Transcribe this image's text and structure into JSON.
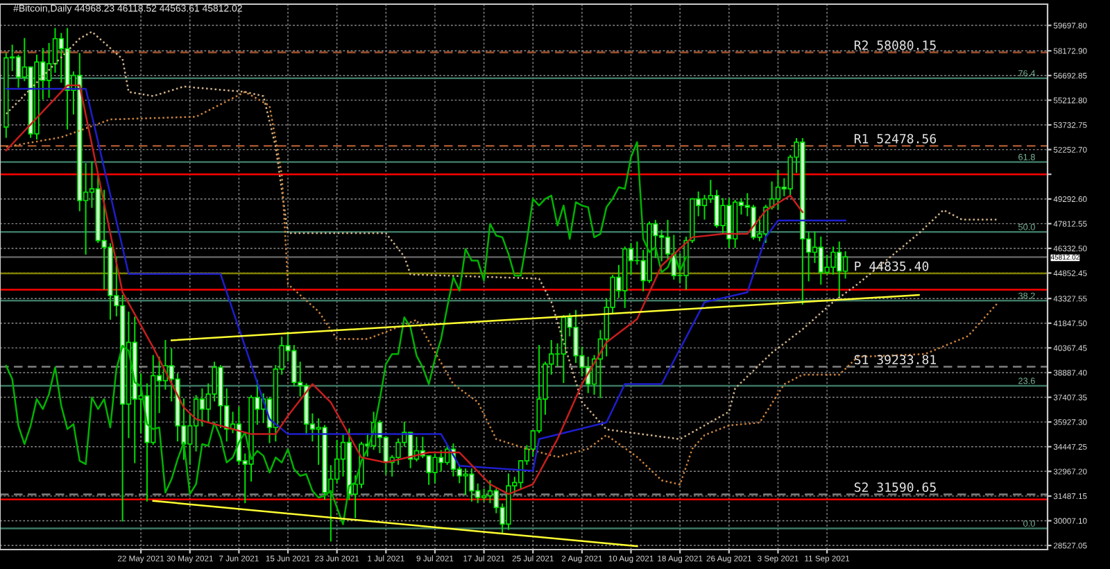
{
  "chart_data": {
    "type": "candlestick",
    "title": "#Bitcoin,Daily 44968.23 46118.52 44563.61 45812.02",
    "xlim": [
      "2021-04-29",
      "2021-10-17"
    ],
    "ylim": [
      28280,
      60969
    ],
    "xticks": [
      {
        "value": "2021-05-22",
        "label": "22 May 2021"
      },
      {
        "value": "2021-05-30",
        "label": "30 May 2021"
      },
      {
        "value": "2021-06-07",
        "label": "7 Jun 2021"
      },
      {
        "value": "2021-06-15",
        "label": "15 Jun 2021"
      },
      {
        "value": "2021-06-23",
        "label": "23 Jun 2021"
      },
      {
        "value": "2021-07-01",
        "label": "1 Jul 2021"
      },
      {
        "value": "2021-07-09",
        "label": "9 Jul 2021"
      },
      {
        "value": "2021-07-17",
        "label": "17 Jul 2021"
      },
      {
        "value": "2021-07-25",
        "label": "25 Jul 2021"
      },
      {
        "value": "2021-08-02",
        "label": "2 Aug 2021"
      },
      {
        "value": "2021-08-10",
        "label": "10 Aug 2021"
      },
      {
        "value": "2021-08-18",
        "label": "18 Aug 2021"
      },
      {
        "value": "2021-08-26",
        "label": "26 Aug 2021"
      },
      {
        "value": "2021-09-03",
        "label": "3 Sep 2021"
      },
      {
        "value": "2021-09-11",
        "label": "11 Sep 2021"
      }
    ],
    "yticks": [
      {
        "value": 28527.05,
        "label": "28527.05"
      },
      {
        "value": 30007.1,
        "label": "30007.10"
      },
      {
        "value": 31487.15,
        "label": "31487.15"
      },
      {
        "value": 32967.2,
        "label": "32967.20"
      },
      {
        "value": 34447.25,
        "label": "34447.25"
      },
      {
        "value": 35927.3,
        "label": "35927.30"
      },
      {
        "value": 37407.35,
        "label": "37407.35"
      },
      {
        "value": 38887.4,
        "label": "38887.40"
      },
      {
        "value": 40367.45,
        "label": "40367.45"
      },
      {
        "value": 41847.5,
        "label": "41847.50"
      },
      {
        "value": 43327.55,
        "label": "43327.55"
      },
      {
        "value": 44852.45,
        "label": "44852.45"
      },
      {
        "value": 46332.5,
        "label": "46332.50"
      },
      {
        "value": 47812.55,
        "label": "47812.55"
      },
      {
        "value": 49292.6,
        "label": "49292.60"
      },
      {
        "value": 50772.65,
        "label": null
      },
      {
        "value": 52252.7,
        "label": "52252.70"
      },
      {
        "value": 53732.75,
        "label": "53732.75"
      },
      {
        "value": 55212.8,
        "label": "55212.80"
      },
      {
        "value": 56692.85,
        "label": "56692.85"
      },
      {
        "value": 58172.9,
        "label": "58172.90"
      },
      {
        "value": 59697.8,
        "label": "59697.80"
      }
    ],
    "grid": true,
    "annotations": [
      {
        "text": "76.4",
        "x": "2021-10-15",
        "y": 56530
      },
      {
        "text": "61.8",
        "x": "2021-10-15",
        "y": 51510
      },
      {
        "text": "50.0",
        "x": "2021-10-15",
        "y": 47320
      },
      {
        "text": "38.2",
        "x": "2021-10-15",
        "y": 43200
      },
      {
        "text": "23.6",
        "x": "2021-10-15",
        "y": 38100
      },
      {
        "text": "0.0",
        "x": "2021-10-15",
        "y": 29550
      }
    ],
    "series": [
      {
        "type": "line",
        "line_style": "dotted",
        "color": "#d2b48c",
        "x": [
          "2021-04-30",
          "2021-05-12",
          "2021-05-14",
          "2021-05-19",
          "2021-05-20",
          "2021-05-24",
          "2021-05-29",
          "2021-06-08",
          "2021-06-11",
          "2021-06-13",
          "2021-06-15",
          "2021-07-01",
          "2021-07-04",
          "2021-07-05",
          "2021-07-26",
          "2021-07-28",
          "2021-08-02",
          "2021-08-06",
          "2021-08-18",
          "2021-08-26",
          "2021-08-27",
          "2021-09-02",
          "2021-09-07",
          "2021-09-12",
          "2021-09-16",
          "2021-09-26",
          "2021-09-30",
          "2021-10-03",
          "2021-10-09"
        ],
        "values": [
          54390,
          58910,
          59320,
          57680,
          55710,
          55460,
          56030,
          55710,
          55460,
          52420,
          47240,
          47240,
          45840,
          44770,
          44520,
          43120,
          37120,
          35480,
          34900,
          36540,
          37940,
          40080,
          41480,
          43120,
          44190,
          47240,
          48630,
          48060,
          48060
        ]
      },
      {
        "type": "line",
        "line_style": "dotted",
        "color": "#cd853f",
        "x": [
          "2021-04-30",
          "2021-05-09",
          "2021-05-17",
          "2021-05-31",
          "2021-06-08",
          "2021-06-12",
          "2021-06-14",
          "2021-06-15",
          "2021-06-20",
          "2021-06-23",
          "2021-06-28",
          "2021-07-06",
          "2021-07-12",
          "2021-07-16",
          "2021-07-19",
          "2021-07-24",
          "2021-07-29",
          "2021-08-03",
          "2021-08-06",
          "2021-08-11",
          "2021-08-15",
          "2021-08-18",
          "2021-08-20",
          "2021-08-22",
          "2021-08-26",
          "2021-08-31",
          "2021-09-04",
          "2021-09-07",
          "2021-09-13",
          "2021-09-16",
          "2021-09-27",
          "2021-10-04",
          "2021-10-09"
        ],
        "values": [
          52420,
          52990,
          54060,
          54220,
          55710,
          54880,
          50770,
          44190,
          42550,
          40900,
          40900,
          42050,
          38190,
          37120,
          34900,
          34320,
          33830,
          34320,
          35140,
          33830,
          32430,
          32180,
          34320,
          35140,
          35720,
          35890,
          38190,
          38760,
          38760,
          39830,
          40000,
          41070,
          43120
        ]
      },
      {
        "type": "line",
        "color": "#00b400",
        "x": [
          "2021-04-30",
          "2021-05-01",
          "2021-05-02",
          "2021-05-03",
          "2021-05-04",
          "2021-05-05",
          "2021-05-06",
          "2021-05-07",
          "2021-05-08",
          "2021-05-09",
          "2021-05-10",
          "2021-05-11",
          "2021-05-12",
          "2021-05-13",
          "2021-05-14",
          "2021-05-15",
          "2021-05-16",
          "2021-05-17",
          "2021-05-18",
          "2021-05-19",
          "2021-05-20",
          "2021-05-21",
          "2021-05-22",
          "2021-05-23",
          "2021-05-24",
          "2021-05-25",
          "2021-05-26",
          "2021-05-27",
          "2021-05-28",
          "2021-05-29",
          "2021-05-30",
          "2021-05-31",
          "2021-06-01",
          "2021-06-02",
          "2021-06-03",
          "2021-06-04",
          "2021-06-05",
          "2021-06-06",
          "2021-06-07",
          "2021-06-08",
          "2021-06-09",
          "2021-06-10",
          "2021-06-11",
          "2021-06-12",
          "2021-06-13",
          "2021-06-14",
          "2021-06-15",
          "2021-06-16",
          "2021-06-17",
          "2021-06-18",
          "2021-06-19",
          "2021-06-20",
          "2021-06-21",
          "2021-06-22",
          "2021-06-23",
          "2021-06-24",
          "2021-06-25",
          "2021-06-26",
          "2021-06-27",
          "2021-06-28",
          "2021-06-29",
          "2021-06-30",
          "2021-07-01",
          "2021-07-02",
          "2021-07-03",
          "2021-07-04",
          "2021-07-05",
          "2021-07-06",
          "2021-07-07",
          "2021-07-08",
          "2021-07-09",
          "2021-07-10",
          "2021-07-11",
          "2021-07-12",
          "2021-07-13",
          "2021-07-14",
          "2021-07-15",
          "2021-07-16",
          "2021-07-17",
          "2021-07-18",
          "2021-07-19",
          "2021-07-20",
          "2021-07-21",
          "2021-07-22",
          "2021-07-23",
          "2021-07-24",
          "2021-07-25",
          "2021-07-26",
          "2021-07-27",
          "2021-07-28",
          "2021-07-29",
          "2021-07-30",
          "2021-07-31",
          "2021-08-01",
          "2021-08-02",
          "2021-08-03",
          "2021-08-04",
          "2021-08-05",
          "2021-08-06",
          "2021-08-07",
          "2021-08-08",
          "2021-08-09",
          "2021-08-10",
          "2021-08-11",
          "2021-08-12",
          "2021-08-13",
          "2021-08-14",
          "2021-08-15",
          "2021-08-16",
          "2021-08-17",
          "2021-08-18",
          "2021-08-19"
        ],
        "values": [
          39300,
          38500,
          35700,
          34600,
          35700,
          37300,
          36700,
          37600,
          39200,
          36900,
          35500,
          35800,
          33600,
          33400,
          37400,
          36700,
          37300,
          35600,
          39100,
          40500,
          40200,
          38300,
          38100,
          35800,
          35500,
          35600,
          31700,
          32500,
          33700,
          34700,
          31600,
          32200,
          34600,
          34500,
          35900,
          35000,
          33500,
          33800,
          34700,
          35300,
          33700,
          34200,
          33900,
          32900,
          33800,
          33500,
          34300,
          33100,
          32700,
          32800,
          31800,
          31400,
          31500,
          31800,
          30800,
          29800,
          32100,
          32300,
          33600,
          34300,
          35400,
          37300,
          39400,
          40000,
          40000,
          42200,
          41600,
          39900,
          39200,
          38200,
          39700,
          40900,
          42800,
          44600,
          43800,
          46300,
          45600,
          45600,
          44400,
          47800,
          47100,
          47000,
          46000,
          44700,
          44700,
          46800,
          49300,
          48900,
          49300,
          49500,
          47700,
          48900,
          46900,
          49100,
          48900,
          48800,
          47000,
          47200,
          48800,
          49300,
          50000,
          49900,
          51800,
          52700,
          46900,
          46100,
          46400,
          44900,
          45200,
          46100,
          44968.23,
          45812.02
        ]
      },
      {
        "type": "line",
        "color": "#1e1ecd",
        "x": [
          "2021-04-30",
          "2021-05-13",
          "2021-05-20",
          "2021-06-04",
          "2021-06-12",
          "2021-06-15",
          "2021-07-10",
          "2021-07-13",
          "2021-07-25",
          "2021-07-26",
          "2021-08-06",
          "2021-08-09",
          "2021-08-15",
          "2021-08-22",
          "2021-08-29",
          "2021-09-01",
          "2021-09-03",
          "2021-09-14"
        ],
        "values": [
          55900,
          55900,
          44800,
          44800,
          36100,
          35200,
          35200,
          33300,
          33000,
          34900,
          35900,
          38200,
          38200,
          43100,
          43700,
          47000,
          48000,
          48000
        ]
      },
      {
        "type": "line",
        "color": "#c81e1e",
        "x": [
          "2021-04-30",
          "2021-05-10",
          "2021-05-12",
          "2021-05-19",
          "2021-05-24",
          "2021-05-29",
          "2021-05-31",
          "2021-06-09",
          "2021-06-13",
          "2021-06-15",
          "2021-06-19",
          "2021-06-22",
          "2021-06-27",
          "2021-07-01",
          "2021-07-08",
          "2021-07-13",
          "2021-07-18",
          "2021-07-21",
          "2021-07-25",
          "2021-07-29",
          "2021-08-02",
          "2021-08-06",
          "2021-08-11",
          "2021-08-15",
          "2021-08-20",
          "2021-08-25",
          "2021-08-29",
          "2021-09-01",
          "2021-09-05",
          "2021-09-07"
        ],
        "values": [
          52200,
          56100,
          56100,
          43700,
          40400,
          36800,
          36100,
          35200,
          35200,
          36300,
          38200,
          37100,
          33800,
          33500,
          34100,
          34100,
          32200,
          31600,
          32200,
          34900,
          38200,
          40700,
          42100,
          45300,
          47000,
          47200,
          47200,
          48600,
          49500,
          48500
        ]
      },
      {
        "type": "line",
        "color": "#ffff32",
        "x": [
          "2021-05-27",
          "2021-09-26"
        ],
        "values": [
          40820,
          43540
        ]
      },
      {
        "type": "line",
        "color": "#ffff32",
        "x": [
          "2021-05-24",
          "2021-08-11"
        ],
        "values": [
          31200,
          28480
        ]
      },
      {
        "color": "#00e600",
        "x": [
          "2021-04-30",
          "2021-05-01",
          "2021-05-02",
          "2021-05-03",
          "2021-05-04",
          "2021-05-05",
          "2021-05-06",
          "2021-05-07",
          "2021-05-08",
          "2021-05-09",
          "2021-05-10",
          "2021-05-11",
          "2021-05-12",
          "2021-05-13",
          "2021-05-14",
          "2021-05-15",
          "2021-05-16",
          "2021-05-17",
          "2021-05-18",
          "2021-05-19",
          "2021-05-20",
          "2021-05-21",
          "2021-05-22",
          "2021-05-23",
          "2021-05-24",
          "2021-05-25",
          "2021-05-26",
          "2021-05-27",
          "2021-05-28",
          "2021-05-29",
          "2021-05-30",
          "2021-05-31",
          "2021-06-01",
          "2021-06-02",
          "2021-06-03",
          "2021-06-04",
          "2021-06-05",
          "2021-06-06",
          "2021-06-07",
          "2021-06-08",
          "2021-06-09",
          "2021-06-10",
          "2021-06-11",
          "2021-06-12",
          "2021-06-13",
          "2021-06-14",
          "2021-06-15",
          "2021-06-16",
          "2021-06-17",
          "2021-06-18",
          "2021-06-19",
          "2021-06-20",
          "2021-06-21",
          "2021-06-22",
          "2021-06-23",
          "2021-06-24",
          "2021-06-25",
          "2021-06-26",
          "2021-06-27",
          "2021-06-28",
          "2021-06-29",
          "2021-06-30",
          "2021-07-01",
          "2021-07-02",
          "2021-07-03",
          "2021-07-04",
          "2021-07-05",
          "2021-07-06",
          "2021-07-07",
          "2021-07-08",
          "2021-07-09",
          "2021-07-10",
          "2021-07-11",
          "2021-07-12",
          "2021-07-13",
          "2021-07-14",
          "2021-07-15",
          "2021-07-16",
          "2021-07-17",
          "2021-07-18",
          "2021-07-19",
          "2021-07-20",
          "2021-07-21",
          "2021-07-22",
          "2021-07-23",
          "2021-07-24",
          "2021-07-25",
          "2021-07-26",
          "2021-07-27",
          "2021-07-28",
          "2021-07-29",
          "2021-07-30",
          "2021-07-31",
          "2021-08-01",
          "2021-08-02",
          "2021-08-03",
          "2021-08-04",
          "2021-08-05",
          "2021-08-06",
          "2021-08-07",
          "2021-08-08",
          "2021-08-09",
          "2021-08-10",
          "2021-08-11",
          "2021-08-12",
          "2021-08-13",
          "2021-08-14",
          "2021-08-15",
          "2021-08-16",
          "2021-08-17",
          "2021-08-18",
          "2021-08-19",
          "2021-08-20",
          "2021-08-21",
          "2021-08-22",
          "2021-08-23",
          "2021-08-24",
          "2021-08-25",
          "2021-08-26",
          "2021-08-27",
          "2021-08-28",
          "2021-08-29",
          "2021-08-30",
          "2021-08-31",
          "2021-09-01",
          "2021-09-02",
          "2021-09-03",
          "2021-09-04",
          "2021-09-05",
          "2021-09-06",
          "2021-09-07",
          "2021-09-08",
          "2021-09-09",
          "2021-09-10",
          "2021-09-11",
          "2021-09-12",
          "2021-09-13",
          "2021-09-14"
        ],
        "ohlc": [
          [
            53600,
            58000,
            53000,
            57750
          ],
          [
            57750,
            58500,
            57000,
            57800
          ],
          [
            57800,
            57900,
            56000,
            56600
          ],
          [
            56600,
            58900,
            56400,
            57200
          ],
          [
            57200,
            57200,
            53000,
            53200
          ],
          [
            53200,
            57900,
            52900,
            57500
          ],
          [
            57500,
            58300,
            55300,
            56400
          ],
          [
            56400,
            58600,
            55400,
            57400
          ],
          [
            57400,
            59500,
            56900,
            58900
          ],
          [
            58900,
            59200,
            56300,
            58300
          ],
          [
            58300,
            59500,
            53500,
            55800
          ],
          [
            55800,
            56900,
            54400,
            56700
          ],
          [
            56700,
            58000,
            48600,
            49200
          ],
          [
            49200,
            51400,
            46000,
            49700
          ],
          [
            49700,
            51500,
            48800,
            49900
          ],
          [
            49900,
            50700,
            46700,
            46800
          ],
          [
            46800,
            49800,
            43900,
            46400
          ],
          [
            46400,
            46600,
            42100,
            43500
          ],
          [
            43500,
            45800,
            42300,
            42900
          ],
          [
            42900,
            43500,
            30000,
            37000
          ],
          [
            37000,
            42500,
            35000,
            40700
          ],
          [
            40700,
            42200,
            33500,
            37300
          ],
          [
            37300,
            38800,
            35300,
            37500
          ],
          [
            37500,
            38200,
            31200,
            34700
          ],
          [
            34700,
            39900,
            34600,
            38700
          ],
          [
            38700,
            39800,
            36500,
            38400
          ],
          [
            38400,
            40800,
            37900,
            39300
          ],
          [
            39300,
            40300,
            37200,
            38500
          ],
          [
            38500,
            38800,
            34800,
            35700
          ],
          [
            35700,
            37300,
            33700,
            34600
          ],
          [
            34600,
            36400,
            33400,
            35700
          ],
          [
            35700,
            37500,
            34200,
            37300
          ],
          [
            37300,
            37900,
            35700,
            36700
          ],
          [
            36700,
            38200,
            35900,
            37600
          ],
          [
            37600,
            39500,
            37200,
            39200
          ],
          [
            39200,
            39300,
            35600,
            36900
          ],
          [
            36900,
            37900,
            34800,
            35500
          ],
          [
            35500,
            36500,
            35300,
            35800
          ],
          [
            35800,
            36800,
            33400,
            33600
          ],
          [
            33600,
            34000,
            31100,
            33400
          ],
          [
            33400,
            37500,
            32400,
            37400
          ],
          [
            37400,
            38400,
            35800,
            36700
          ],
          [
            36700,
            37600,
            35900,
            37300
          ],
          [
            37300,
            37400,
            34700,
            35600
          ],
          [
            35600,
            39300,
            34800,
            39100
          ],
          [
            39100,
            41000,
            38800,
            40500
          ],
          [
            40500,
            41300,
            39600,
            40200
          ],
          [
            40200,
            40500,
            38100,
            38300
          ],
          [
            38300,
            39500,
            37500,
            38100
          ],
          [
            38100,
            38200,
            35200,
            35800
          ],
          [
            35800,
            36400,
            34800,
            35500
          ],
          [
            35500,
            36100,
            33400,
            35600
          ],
          [
            35600,
            35700,
            31300,
            31700
          ],
          [
            31700,
            33300,
            28800,
            32500
          ],
          [
            32500,
            34800,
            32300,
            33700
          ],
          [
            33700,
            35200,
            32700,
            34700
          ],
          [
            34700,
            35500,
            31300,
            31600
          ],
          [
            31600,
            32700,
            30200,
            32200
          ],
          [
            32200,
            34700,
            32000,
            34600
          ],
          [
            34600,
            35200,
            33900,
            34500
          ],
          [
            34500,
            36500,
            34300,
            35900
          ],
          [
            35900,
            36000,
            34100,
            35000
          ],
          [
            35000,
            35000,
            32800,
            33500
          ],
          [
            33500,
            33900,
            32700,
            33800
          ],
          [
            33800,
            34900,
            33400,
            34700
          ],
          [
            34700,
            35900,
            34500,
            35300
          ],
          [
            35300,
            35300,
            33200,
            33700
          ],
          [
            33700,
            35000,
            33600,
            34200
          ],
          [
            34200,
            35000,
            33800,
            33900
          ],
          [
            33900,
            33900,
            32200,
            32900
          ],
          [
            32900,
            34000,
            32300,
            33800
          ],
          [
            33800,
            34200,
            33000,
            33500
          ],
          [
            33500,
            34500,
            33400,
            34300
          ],
          [
            34300,
            34600,
            32700,
            33100
          ],
          [
            33100,
            33300,
            32300,
            32700
          ],
          [
            32700,
            33100,
            31600,
            32800
          ],
          [
            32800,
            33100,
            31200,
            31800
          ],
          [
            31800,
            32200,
            31100,
            31400
          ],
          [
            31400,
            31900,
            31200,
            31500
          ],
          [
            31500,
            32400,
            31100,
            31800
          ],
          [
            31800,
            31900,
            30500,
            30800
          ],
          [
            30800,
            31000,
            29300,
            29800
          ],
          [
            29800,
            32800,
            29500,
            32100
          ],
          [
            32100,
            32600,
            31700,
            32300
          ],
          [
            32300,
            33600,
            31900,
            33600
          ],
          [
            33600,
            34500,
            33400,
            34300
          ],
          [
            34300,
            35400,
            33900,
            35400
          ],
          [
            35400,
            40500,
            35300,
            37300
          ],
          [
            37300,
            39500,
            36400,
            39400
          ],
          [
            39400,
            40800,
            38800,
            40000
          ],
          [
            40000,
            40600,
            39300,
            40000
          ],
          [
            40000,
            42300,
            38300,
            42200
          ],
          [
            42200,
            42400,
            41100,
            41600
          ],
          [
            41600,
            42600,
            39500,
            39900
          ],
          [
            39900,
            40400,
            38700,
            39200
          ],
          [
            39200,
            39800,
            37700,
            38200
          ],
          [
            38200,
            39900,
            37600,
            39700
          ],
          [
            39700,
            41400,
            37400,
            40900
          ],
          [
            40900,
            43300,
            39900,
            42800
          ],
          [
            42800,
            44700,
            42500,
            44600
          ],
          [
            44600,
            45300,
            43400,
            43800
          ],
          [
            43800,
            46400,
            42800,
            46300
          ],
          [
            46300,
            46600,
            44800,
            45600
          ],
          [
            45600,
            46700,
            45400,
            45600
          ],
          [
            45600,
            46200,
            43800,
            44400
          ],
          [
            44400,
            47900,
            44300,
            47800
          ],
          [
            47800,
            48000,
            45800,
            47100
          ],
          [
            47100,
            47400,
            45600,
            47000
          ],
          [
            47000,
            48000,
            45700,
            46000
          ],
          [
            46000,
            47100,
            44500,
            44700
          ],
          [
            44700,
            46000,
            44300,
            44700
          ],
          [
            44700,
            47000,
            43900,
            46800
          ],
          [
            46800,
            49300,
            46700,
            49300
          ],
          [
            49300,
            49700,
            48300,
            48900
          ],
          [
            48900,
            49500,
            48100,
            49300
          ],
          [
            49300,
            50400,
            49100,
            49500
          ],
          [
            49500,
            49800,
            47600,
            47700
          ],
          [
            47700,
            49300,
            47200,
            48900
          ],
          [
            48900,
            49300,
            46400,
            46900
          ],
          [
            46900,
            49200,
            46400,
            49100
          ],
          [
            49100,
            49300,
            48400,
            48900
          ],
          [
            48900,
            49600,
            48300,
            48800
          ],
          [
            48800,
            48900,
            46900,
            47000
          ],
          [
            47000,
            48200,
            46800,
            47200
          ],
          [
            47200,
            48900,
            46700,
            48800
          ],
          [
            48800,
            50300,
            48700,
            49300
          ],
          [
            49300,
            51000,
            48700,
            50000
          ],
          [
            50000,
            50500,
            49500,
            49900
          ],
          [
            49900,
            51900,
            49500,
            51800
          ],
          [
            51800,
            52900,
            50900,
            52700
          ],
          [
            52700,
            52900,
            43000,
            46900
          ],
          [
            46900,
            47300,
            44400,
            46100
          ],
          [
            46100,
            47300,
            45500,
            46400
          ],
          [
            46400,
            47000,
            44200,
            44900
          ],
          [
            44900,
            45900,
            44800,
            45200
          ],
          [
            45200,
            46400,
            44800,
            46100
          ],
          [
            46100,
            46700,
            43400,
            44968.23
          ],
          [
            44968.23,
            46118.52,
            44563.61,
            45812.02
          ]
        ]
      }
    ],
    "ref_lines": [
      {
        "axis": "y",
        "value": 50770,
        "color": "#ff0000"
      },
      {
        "axis": "y",
        "value": 43860,
        "color": "#ff0000"
      },
      {
        "axis": "y",
        "value": 31280,
        "color": "#ff0000"
      },
      {
        "axis": "y",
        "value": 56530,
        "color": "#3c7864"
      },
      {
        "axis": "y",
        "value": 51510,
        "color": "#3c7864"
      },
      {
        "axis": "y",
        "value": 47320,
        "color": "#3c7864"
      },
      {
        "axis": "y",
        "value": 43200,
        "color": "#3c7864"
      },
      {
        "axis": "y",
        "value": 38100,
        "color": "#3c7864"
      },
      {
        "axis": "y",
        "value": 29550,
        "color": "#3c7864"
      },
      {
        "axis": "y",
        "value": 58080.15,
        "label": "R2 58080.15",
        "color": "#a0522d",
        "line_style": "dashed"
      },
      {
        "axis": "y",
        "value": 52478.56,
        "label": "R1 52478.56",
        "color": "#a0522d",
        "line_style": "dashed"
      },
      {
        "axis": "y",
        "value": 44835.4,
        "label": "P 44835.40",
        "color": "#808000"
      },
      {
        "axis": "y",
        "value": 39233.81,
        "label": "S1 39233.81",
        "color": "#808080",
        "line_style": "dashed"
      },
      {
        "axis": "y",
        "value": 31590.65,
        "label": "S2 31590.65",
        "color": "#808080",
        "line_style": "dashed"
      },
      {
        "axis": "y",
        "value": 45812.02,
        "label": "45812.02",
        "color": "#606060"
      }
    ]
  }
}
